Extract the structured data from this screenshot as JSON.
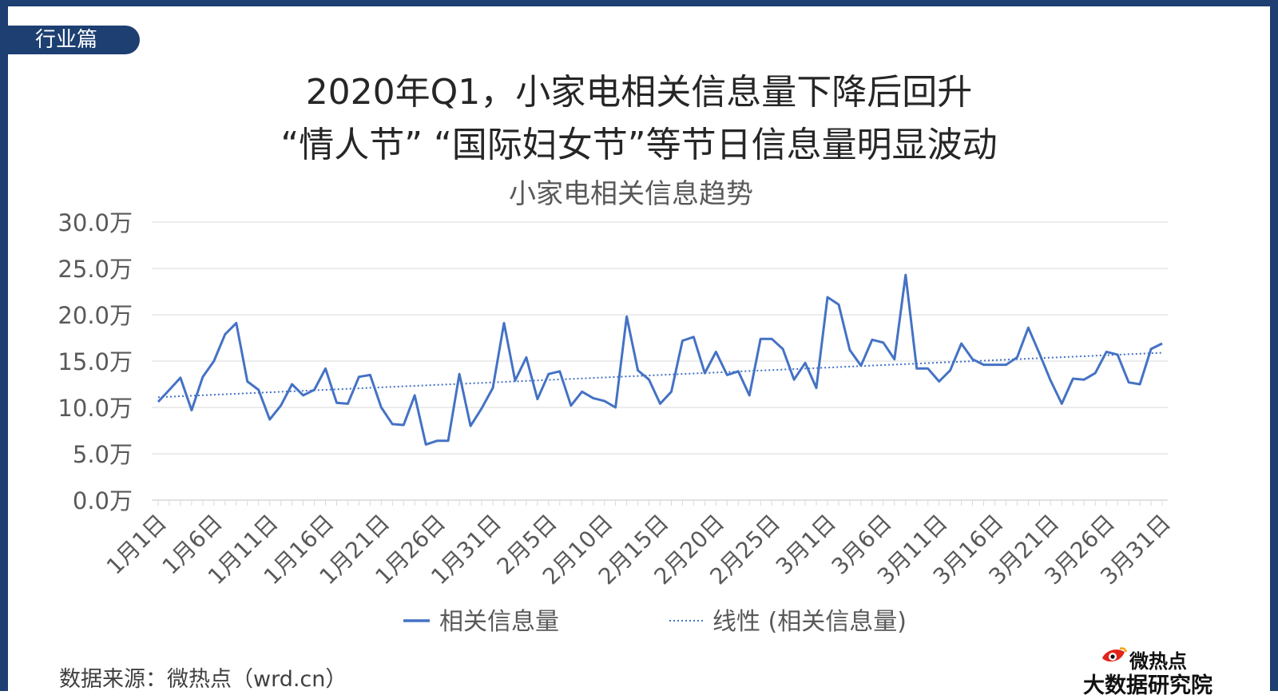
{
  "section_tab": "行业篇",
  "headline": {
    "line1": "2020年Q1，小家电相关信息量下降后回升",
    "line2": "“情人节” “国际妇女节”等节日信息量明显波动"
  },
  "footer": {
    "source": "数据来源：微热点（wrd.cn）",
    "logo_top": "微热点",
    "logo_bottom": "大数据研究院"
  },
  "colors": {
    "frame": "#1d3f72",
    "series": "#4472c4",
    "grid": "#d9d9d9",
    "text": "#595959"
  },
  "chart_data": {
    "type": "line",
    "title": "小家电相关信息趋势",
    "xlabel": "",
    "ylabel": "",
    "ylim": [
      0,
      30
    ],
    "y_ticks": [
      0,
      5,
      10,
      15,
      20,
      25,
      30
    ],
    "y_tick_labels": [
      "0.0万",
      "5.0万",
      "10.0万",
      "15.0万",
      "20.0万",
      "25.0万",
      "30.0万"
    ],
    "grid": true,
    "legend_position": "bottom",
    "x_tick_labels": [
      "1月1日",
      "1月6日",
      "1月11日",
      "1月16日",
      "1月21日",
      "1月26日",
      "1月31日",
      "2月5日",
      "2月10日",
      "2月15日",
      "2月20日",
      "2月25日",
      "3月1日",
      "3月6日",
      "3月11日",
      "3月16日",
      "3月21日",
      "3月26日",
      "3月31日"
    ],
    "series": [
      {
        "name": "相关信息量",
        "style": "solid",
        "values": [
          10.6,
          11.9,
          13.2,
          9.7,
          13.3,
          15.0,
          17.9,
          19.1,
          12.8,
          11.9,
          8.7,
          10.2,
          12.5,
          11.3,
          11.9,
          14.2,
          10.5,
          10.4,
          13.3,
          13.5,
          10.0,
          8.2,
          8.1,
          11.3,
          6.0,
          6.4,
          6.4,
          13.6,
          8.0,
          9.9,
          12.1,
          19.1,
          12.9,
          15.4,
          10.9,
          13.6,
          13.9,
          10.2,
          11.7,
          11.0,
          10.7,
          10.0,
          19.8,
          14.0,
          13.0,
          10.4,
          11.7,
          17.2,
          17.6,
          13.7,
          16.0,
          13.5,
          13.9,
          11.3,
          17.4,
          17.4,
          16.3,
          13.0,
          14.8,
          12.1,
          21.9,
          21.1,
          16.2,
          14.5,
          17.3,
          17.0,
          15.2,
          24.3,
          14.2,
          14.2,
          12.8,
          14.0,
          16.9,
          15.2,
          14.6,
          14.6,
          14.6,
          15.4,
          18.6,
          15.8,
          12.9,
          10.4,
          13.1,
          13.0,
          13.7,
          16.0,
          15.7,
          12.7,
          12.5,
          16.3,
          16.9
        ]
      },
      {
        "name": "线性 (相关信息量)",
        "style": "dotted",
        "trendline": true,
        "values_start_end": [
          11.1,
          15.9
        ]
      }
    ]
  }
}
